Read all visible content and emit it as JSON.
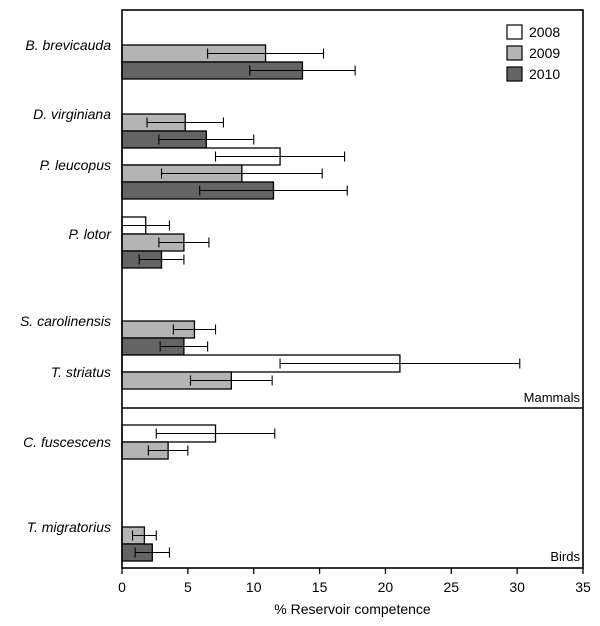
{
  "chart_data": {
    "type": "bar",
    "orientation": "horizontal",
    "xlabel": "% Reservoir competence",
    "xlim": [
      0,
      35
    ],
    "xticks": [
      0,
      5,
      10,
      15,
      20,
      25,
      30,
      35
    ],
    "legend_position": "top-right",
    "panels": [
      {
        "label": "Mammals",
        "categories": [
          "B. brevicauda",
          "D. virginiana",
          "P. leucopus",
          "P. lotor",
          "S. carolinensis",
          "T. striatus"
        ]
      },
      {
        "label": "Birds",
        "categories": [
          "C. fuscescens",
          "T. migratorius"
        ]
      }
    ],
    "categories": [
      "B. brevicauda",
      "D. virginiana",
      "P. leucopus",
      "P. lotor",
      "S. carolinensis",
      "T. striatus",
      "C. fuscescens",
      "T. migratorius"
    ],
    "series": [
      {
        "name": "2008",
        "color": "#ffffff",
        "values": [
          null,
          null,
          12.0,
          1.8,
          null,
          21.1,
          7.1,
          null
        ],
        "errors": [
          null,
          null,
          4.9,
          1.8,
          null,
          9.1,
          4.5,
          null
        ]
      },
      {
        "name": "2009",
        "color": "#b4b4b4",
        "values": [
          10.9,
          4.8,
          9.1,
          4.7,
          5.5,
          8.3,
          3.5,
          1.7
        ],
        "errors": [
          4.4,
          2.9,
          6.1,
          1.9,
          1.6,
          3.1,
          1.5,
          0.9
        ]
      },
      {
        "name": "2010",
        "color": "#646464",
        "values": [
          13.7,
          6.4,
          11.5,
          3.0,
          4.7,
          null,
          null,
          2.3
        ],
        "errors": [
          4.0,
          3.6,
          5.6,
          1.7,
          1.8,
          null,
          null,
          1.3
        ]
      }
    ]
  }
}
